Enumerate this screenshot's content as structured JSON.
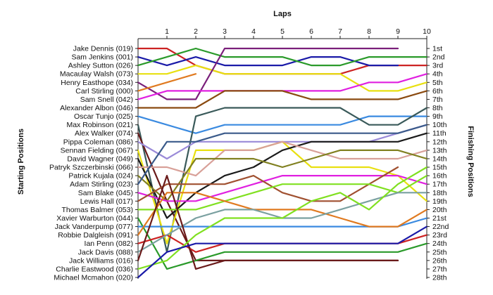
{
  "chart_data": {
    "type": "line",
    "title": "",
    "top_axis_label": "Laps",
    "left_axis_label": "Starting Positions",
    "right_axis_label": "Finishing Positions",
    "laps": [
      0,
      1,
      2,
      3,
      4,
      5,
      6,
      7,
      8,
      9,
      10
    ],
    "lap_tick_labels": [
      "1",
      "2",
      "3",
      "4",
      "5",
      "6",
      "7",
      "8",
      "9",
      "10"
    ],
    "starting_labels": [
      "Jake Dennis (019)",
      "Sam Jenkins (001)",
      "Ashley Sutton (026)",
      "Macaulay Walsh (073)",
      "Henry Easthope (034)",
      "Carl Stirling (000)",
      "Sam Snell (042)",
      "Alexander Albon (046)",
      "Oscar Tunjo (025)",
      "Max Robinson (021)",
      "Alex Walker (074)",
      "Pippa Coleman (086)",
      "Sennan Fielding (067)",
      "David Wagner (049)",
      "Patryk Szczerbinski (066)",
      "Patrick Kujala (024)",
      "Adam Stirling (023)",
      "Sam Blake (045)",
      "Lewis Hall (017)",
      "Thomas Balmer (053)",
      "Xavier Warburton (044)",
      "Jack Vanderpump (077)",
      "Robbie Dalgleish (091)",
      "Ian Penn (082)",
      "Jack Davis (088)",
      "Jack Williams (016)",
      "Charlie Eastwood (036)",
      "Michael Mcmahon (020)"
    ],
    "finishing_labels": [
      "1st",
      "2nd",
      "3rd",
      "4th",
      "5th",
      "6th",
      "7th",
      "8th",
      "9th",
      "10th",
      "11th",
      "12th",
      "13th",
      "14th",
      "15th",
      "16th",
      "17th",
      "18th",
      "19th",
      "20th",
      "21st",
      "22nd",
      "23rd",
      "24th",
      "25th",
      "26th",
      "27th",
      "28th"
    ],
    "y_range": [
      1,
      28
    ],
    "series": [
      {
        "color": "#cc2222",
        "positions": [
          1,
          1,
          3,
          4,
          4,
          4,
          4,
          4,
          3,
          3,
          3
        ]
      },
      {
        "color": "#1a1aa8",
        "positions": [
          2,
          3,
          2,
          3,
          3,
          3,
          2,
          2,
          3,
          3
        ]
      },
      {
        "color": "#2a9a2a",
        "positions": [
          3,
          2,
          1,
          2,
          2,
          2,
          3,
          3,
          2,
          2,
          2
        ]
      },
      {
        "color": "#e8e010",
        "positions": [
          4,
          4,
          3,
          4,
          4,
          4,
          4,
          4,
          6,
          6,
          5
        ]
      },
      {
        "color": "#7a1f7a",
        "positions": [
          5,
          7,
          7,
          1,
          1,
          1,
          1,
          1,
          1,
          1
        ]
      },
      {
        "color": "#e07a20",
        "positions": [
          6,
          5,
          4
        ]
      },
      {
        "color": "#e020e0",
        "positions": [
          7,
          6,
          6,
          6,
          6,
          6,
          6,
          6,
          5,
          5,
          4
        ]
      },
      {
        "color": "#8a4a10",
        "positions": [
          8,
          8,
          8,
          6,
          6,
          6,
          7,
          7,
          7,
          7,
          6
        ]
      },
      {
        "color": "#3a8ae0",
        "positions": [
          9,
          10,
          11,
          10,
          10,
          10,
          10,
          10,
          9,
          9,
          9
        ]
      },
      {
        "color": "#3a5a5a",
        "positions": [
          10,
          25,
          9,
          8,
          8,
          8,
          8,
          8,
          10,
          10,
          8
        ]
      },
      {
        "color": "#6a1a1a",
        "positions": [
          11,
          19,
          26,
          26,
          26,
          26,
          26,
          26,
          26,
          26
        ]
      },
      {
        "color": "#9a8ad8",
        "positions": [
          12,
          14,
          12,
          12,
          12,
          12,
          12,
          12,
          12,
          11,
          10
        ]
      },
      {
        "color": "#e8e010",
        "positions": [
          13,
          24,
          13,
          13,
          13,
          12,
          15,
          15,
          15,
          16,
          19
        ]
      },
      {
        "color": "#1a1a1a",
        "positions": [
          14,
          21,
          18,
          16,
          15,
          13,
          12,
          12,
          12,
          12,
          11
        ]
      },
      {
        "color": "#d8a098",
        "positions": [
          15,
          15,
          16,
          13,
          13,
          12,
          13,
          14,
          14,
          14,
          13
        ]
      },
      {
        "color": "#808020",
        "positions": [
          16,
          19,
          14,
          14,
          14,
          15,
          14,
          13,
          13,
          13,
          14
        ]
      },
      {
        "color": "#3a5a8a",
        "positions": [
          17,
          12,
          12,
          11,
          11,
          11,
          11,
          11,
          11,
          11,
          10
        ]
      },
      {
        "color": "#e020e0",
        "positions": [
          18,
          19,
          19,
          18,
          17,
          16,
          16,
          16,
          16,
          16,
          17
        ]
      },
      {
        "color": "#a05030",
        "positions": [
          19,
          17,
          17,
          17,
          16,
          18,
          19,
          19,
          17,
          15
        ]
      },
      {
        "color": "#80e020",
        "positions": [
          20,
          20,
          20,
          19,
          18,
          17,
          17,
          17,
          17,
          18,
          16
        ]
      },
      {
        "color": "#2a9a2a",
        "positions": [
          21,
          27,
          26,
          25,
          25,
          25,
          25,
          25,
          25,
          25,
          24
        ]
      },
      {
        "color": "#3a8ae0",
        "positions": [
          22,
          22,
          22,
          22,
          22,
          22,
          22,
          22,
          22,
          22,
          21
        ]
      },
      {
        "color": "#e07a20",
        "positions": [
          23,
          18,
          18,
          19,
          20,
          20,
          20,
          21,
          22,
          22,
          20
        ]
      },
      {
        "color": "#cc2222",
        "positions": [
          24,
          23,
          25,
          24,
          24,
          24,
          24,
          24,
          24,
          24,
          23
        ]
      },
      {
        "color": "#7aa0a0",
        "positions": [
          25,
          23,
          21,
          20,
          20,
          21,
          21,
          20,
          19,
          18,
          18
        ]
      },
      {
        "color": "#6a1a1a",
        "positions": [
          26,
          16,
          27,
          26,
          26,
          26,
          26,
          26,
          26,
          26
        ]
      },
      {
        "color": "#80e020",
        "positions": [
          27,
          26,
          23,
          21,
          21,
          21,
          19,
          18,
          20,
          17,
          15
        ]
      },
      {
        "color": "#1a1aa8",
        "positions": [
          28,
          25,
          24,
          24,
          24,
          24,
          24,
          24,
          24,
          24,
          22
        ]
      }
    ]
  }
}
